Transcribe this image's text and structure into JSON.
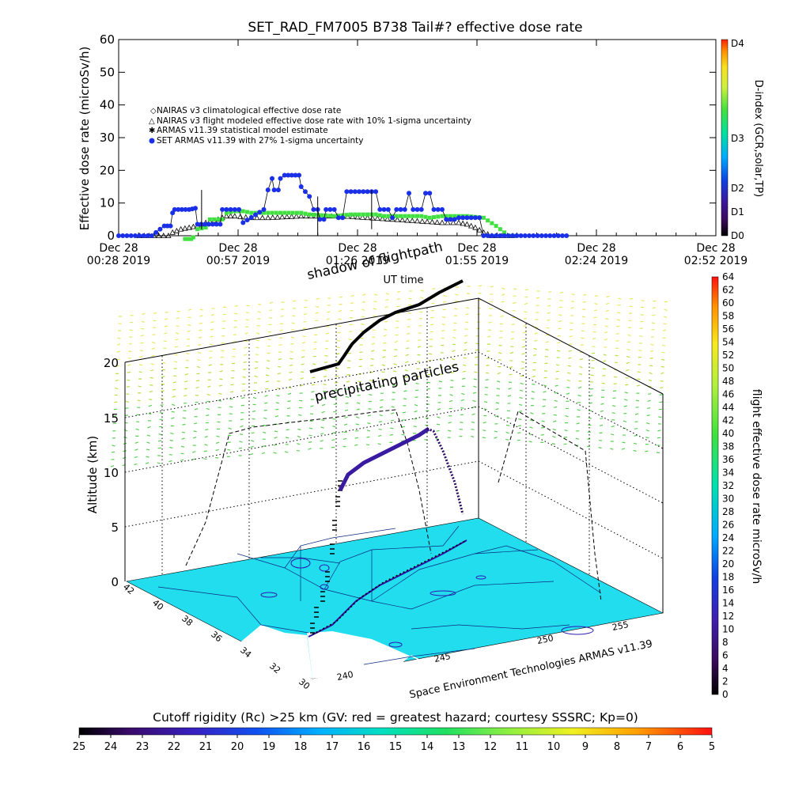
{
  "colors": {
    "naias_clim": "#ff4040",
    "naias_flight": "#000000",
    "armas_stat": "#40e040",
    "set_armas": "#1a2fe8",
    "map_fill": "#22ddee",
    "coast": "#1a2fa0"
  },
  "chart_data": [
    {
      "type": "scatter",
      "title": "SET_RAD_FM7005  B738 Tail#? effective dose rate",
      "xlabel": "UT time",
      "ylabel": "Effective dose rate (microSv/h)",
      "ylim": [
        0,
        60
      ],
      "y_ticks": [
        "0",
        "10",
        "20",
        "30",
        "40",
        "50",
        "60"
      ],
      "x_ticks": [
        {
          "l1": "Dec 28",
          "l2": "00:28 2019"
        },
        {
          "l1": "Dec 28",
          "l2": "00:57 2019"
        },
        {
          "l1": "Dec 28",
          "l2": "01:26 2019"
        },
        {
          "l1": "Dec 28",
          "l2": "01:55 2019"
        },
        {
          "l1": "Dec 28",
          "l2": "02:24 2019"
        },
        {
          "l1": "Dec 28",
          "l2": "02:52 2019"
        }
      ],
      "legend": [
        "NAIRAS v3 climatological effective dose rate",
        "NAIRAS v3 flight modeled effective dose rate with 10% 1-sigma uncertainty",
        "ARMAS v11.39 statistical model estimate",
        "SET ARMAS v11.39 with 27% 1-sigma uncertainty"
      ],
      "legend_position": "left",
      "right_axis_label": "D-index (GCR,solar,TP)",
      "right_axis_ticks": [
        "D0",
        "D1",
        "D2",
        "D3",
        "D4"
      ],
      "series": [
        {
          "name": "SET ARMAS v11.39 with 27% 1-sigma uncertainty",
          "points": [
            [
              0,
              0
            ],
            [
              4,
              0
            ],
            [
              8,
              0
            ],
            [
              11,
              3
            ],
            [
              12.5,
              3
            ],
            [
              13,
              7
            ],
            [
              13.5,
              8
            ],
            [
              17,
              8
            ],
            [
              18.5,
              8.4
            ],
            [
              19,
              3.5
            ],
            [
              24.5,
              3.5
            ],
            [
              25,
              8
            ],
            [
              29,
              8
            ],
            [
              30,
              4
            ],
            [
              35,
              8
            ],
            [
              36,
              14
            ],
            [
              37,
              17.5
            ],
            [
              37.5,
              14
            ],
            [
              38.5,
              14
            ],
            [
              39,
              17.5
            ],
            [
              40,
              18.5
            ],
            [
              43.5,
              18.5
            ],
            [
              44,
              15
            ],
            [
              46,
              12
            ],
            [
              47,
              8
            ],
            [
              48,
              8
            ],
            [
              48.5,
              5
            ],
            [
              49.5,
              5
            ],
            [
              50,
              8
            ],
            [
              52,
              8
            ],
            [
              53,
              5.5
            ],
            [
              54,
              5.5
            ],
            [
              55,
              13.5
            ],
            [
              62,
              13.5
            ],
            [
              63,
              8
            ],
            [
              65,
              8
            ],
            [
              66,
              5.5
            ],
            [
              67,
              8
            ],
            [
              69,
              8
            ],
            [
              70,
              13
            ],
            [
              71,
              8
            ],
            [
              73,
              8
            ],
            [
              74,
              13
            ],
            [
              75,
              13
            ],
            [
              76,
              8
            ],
            [
              78,
              8
            ],
            [
              79,
              5
            ],
            [
              81,
              5
            ],
            [
              82,
              5.5
            ],
            [
              87,
              5.5
            ],
            [
              88,
              0
            ],
            [
              92,
              0
            ],
            [
              104,
              0
            ],
            [
              108,
              0
            ]
          ]
        },
        {
          "name": "ARMAS v11.39 statistical model estimate",
          "points": [
            [
              16,
              -1
            ],
            [
              17.5,
              -1
            ],
            [
              18,
              -0.5
            ],
            [
              19,
              2
            ],
            [
              21,
              2.5
            ],
            [
              22,
              5
            ],
            [
              25,
              5
            ],
            [
              26,
              7
            ],
            [
              28,
              7.5
            ],
            [
              30,
              7.5
            ],
            [
              32,
              7
            ],
            [
              38,
              7
            ],
            [
              44,
              7
            ],
            [
              46,
              6.5
            ],
            [
              52,
              6
            ],
            [
              56,
              6.5
            ],
            [
              62,
              6.5
            ],
            [
              64,
              6
            ],
            [
              70,
              6
            ],
            [
              73,
              6
            ],
            [
              75,
              5.5
            ],
            [
              78,
              6
            ],
            [
              84,
              6
            ],
            [
              88,
              5.5
            ],
            [
              91,
              3
            ],
            [
              94,
              0
            ],
            [
              96,
              0
            ]
          ]
        },
        {
          "name": "NAIRAS v3 flight modeled effective dose rate with 10% 1-sigma uncertainty",
          "points": [
            [
              5,
              0
            ],
            [
              12,
              0
            ],
            [
              13,
              1
            ],
            [
              15,
              2
            ],
            [
              17,
              2.5
            ],
            [
              19,
              3
            ],
            [
              21,
              4
            ],
            [
              24,
              5
            ],
            [
              26,
              6
            ],
            [
              28,
              6
            ],
            [
              32,
              5.5
            ],
            [
              36,
              5.5
            ],
            [
              44,
              6
            ],
            [
              50,
              6
            ],
            [
              54,
              6
            ],
            [
              60,
              5.5
            ],
            [
              66,
              5
            ],
            [
              72,
              4.5
            ],
            [
              78,
              4
            ],
            [
              82,
              4
            ],
            [
              84,
              3.5
            ],
            [
              86,
              2.5
            ],
            [
              88,
              1
            ],
            [
              90,
              0
            ],
            [
              95,
              0
            ]
          ]
        },
        {
          "name": "NAIRAS v3 climatological effective dose rate",
          "points": []
        }
      ]
    }
  ],
  "scene": {
    "shadow_label": "shadow of flightpath",
    "precip_label": "precipitating particles",
    "z_label": "Altitude (km)",
    "z_ticks": [
      "0",
      "5",
      "10",
      "15",
      "20"
    ],
    "lat_ticks": [
      "42",
      "40",
      "38",
      "36",
      "34",
      "32",
      "30"
    ],
    "lon_ticks": [
      "240",
      "245",
      "250",
      "255"
    ],
    "lon_ticks_visible": [
      "240",
      "245",
      "250",
      "255"
    ],
    "credit": "Space Environment Technologies ARMAS v11.39",
    "dose_scale_label": "flight effective dose rate microSv/h",
    "dose_scale_ticks": [
      "0",
      "2",
      "4",
      "6",
      "8",
      "10",
      "12",
      "14",
      "16",
      "18",
      "20",
      "22",
      "24",
      "26",
      "28",
      "30",
      "32",
      "34",
      "36",
      "38",
      "40",
      "42",
      "44",
      "46",
      "48",
      "50",
      "52",
      "54",
      "56",
      "58",
      "60",
      "62",
      "64"
    ]
  },
  "cutoff_bar": {
    "title": "Cutoff rigidity (Rc) >25 km (GV: red = greatest hazard; courtesy SSSRC; Kp=0)",
    "ticks": [
      "25",
      "24",
      "23",
      "22",
      "21",
      "20",
      "19",
      "18",
      "17",
      "16",
      "15",
      "14",
      "13",
      "12",
      "11",
      "10",
      "9",
      "8",
      "7",
      "6",
      "5"
    ]
  }
}
